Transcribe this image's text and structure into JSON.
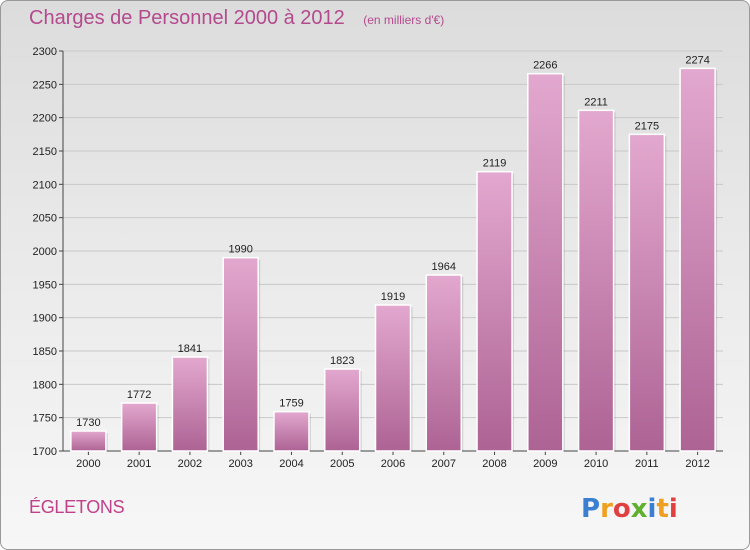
{
  "header": {
    "title": "Charges de Personnel 2000 à 2012",
    "subtitle": "(en milliers d'€)"
  },
  "footer": {
    "commune": "ÉGLETONS",
    "logo_text": "Proxiti"
  },
  "colors": {
    "bar_top": "#e3a8cf",
    "bar_bottom": "#ad6394",
    "title": "#b44a8e",
    "commune": "#c0408a"
  },
  "chart_data": {
    "type": "bar",
    "title": "Charges de Personnel 2000 à 2012",
    "subtitle": "(en milliers d'€)",
    "xlabel": "",
    "ylabel": "",
    "categories": [
      "2000",
      "2001",
      "2002",
      "2003",
      "2004",
      "2005",
      "2006",
      "2007",
      "2008",
      "2009",
      "2010",
      "2011",
      "2012"
    ],
    "values": [
      1730,
      1772,
      1841,
      1990,
      1759,
      1823,
      1919,
      1964,
      2119,
      2266,
      2211,
      2175,
      2274
    ],
    "ylim": [
      1700,
      2300
    ],
    "yticks": [
      1700,
      1750,
      1800,
      1850,
      1900,
      1950,
      2000,
      2050,
      2100,
      2150,
      2200,
      2250,
      2300
    ],
    "grid": true,
    "legend": "none",
    "data_labels": true
  }
}
